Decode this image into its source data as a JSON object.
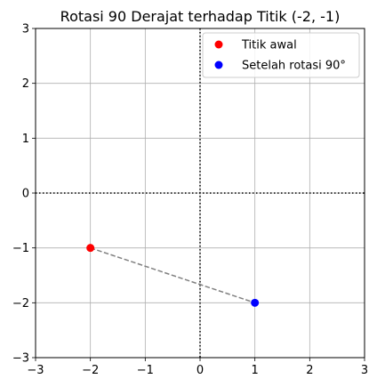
{
  "chart_data": {
    "type": "scatter",
    "title": "Rotasi 90 Derajat terhadap Titik (-2, -1)",
    "xlabel": "",
    "ylabel": "",
    "xlim": [
      -3,
      3
    ],
    "ylim": [
      -3,
      3
    ],
    "xticks": [
      -3,
      -2,
      -1,
      0,
      1,
      2,
      3
    ],
    "yticks": [
      -3,
      -2,
      -1,
      0,
      1,
      2,
      3
    ],
    "xtick_labels": [
      "−3",
      "−2",
      "−1",
      "0",
      "1",
      "2",
      "3"
    ],
    "ytick_labels": [
      "−3",
      "−2",
      "−1",
      "0",
      "1",
      "2",
      "3"
    ],
    "grid": true,
    "legend_position": "top-right",
    "series": [
      {
        "name": "Titik awal",
        "color": "#ff0000",
        "x": [
          -2
        ],
        "y": [
          -1
        ]
      },
      {
        "name": "Setelah rotasi 90°",
        "color": "#0000ff",
        "x": [
          1
        ],
        "y": [
          -2
        ]
      }
    ],
    "connector": {
      "from": [
        -2,
        -1
      ],
      "to": [
        1,
        -2
      ],
      "style": "dashed",
      "color": "#808080"
    },
    "axes_lines": {
      "x": 0,
      "y": 0,
      "style": "dotted",
      "color": "#000000"
    }
  }
}
